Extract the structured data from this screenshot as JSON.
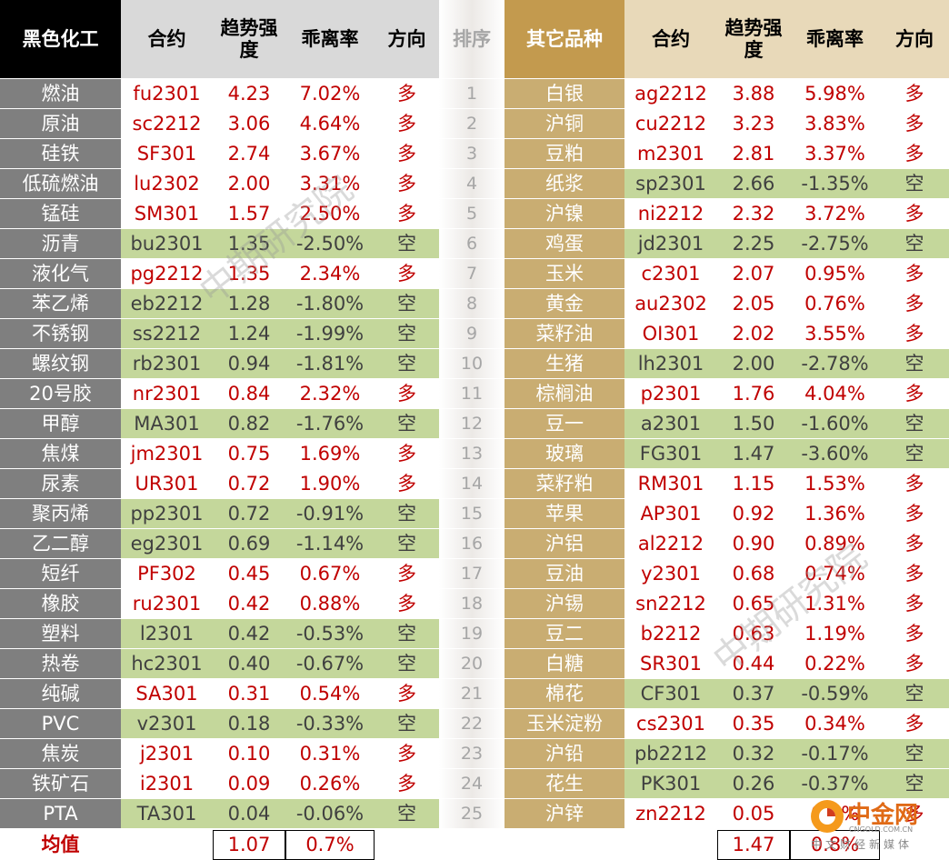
{
  "colors": {
    "long_text": "#c00000",
    "short_bg": "#c4d79b",
    "short_text": "#404040",
    "left_name_bg": "#7f7f7f",
    "right_name_bg": "#c9ad72",
    "left_title_bg": "#000000",
    "right_title_bg": "#c39a4e",
    "header_bg": "#d9d9d9",
    "right_header_bg": "#e8d9b9"
  },
  "left": {
    "title": "黑色化工",
    "headers": {
      "contract": "合约",
      "trend": "趋势强度",
      "deviation": "乖离率",
      "direction": "方向"
    },
    "rows": [
      {
        "name": "燃油",
        "contract": "fu2301",
        "trend": "4.23",
        "deviation": "7.02%",
        "direction": "多"
      },
      {
        "name": "原油",
        "contract": "sc2212",
        "trend": "3.06",
        "deviation": "4.64%",
        "direction": "多"
      },
      {
        "name": "硅铁",
        "contract": "SF301",
        "trend": "2.74",
        "deviation": "3.67%",
        "direction": "多"
      },
      {
        "name": "低硫燃油",
        "contract": "lu2302",
        "trend": "2.00",
        "deviation": "3.31%",
        "direction": "多"
      },
      {
        "name": "锰硅",
        "contract": "SM301",
        "trend": "1.57",
        "deviation": "2.50%",
        "direction": "多"
      },
      {
        "name": "沥青",
        "contract": "bu2301",
        "trend": "1.35",
        "deviation": "-2.50%",
        "direction": "空"
      },
      {
        "name": "液化气",
        "contract": "pg2212",
        "trend": "1.35",
        "deviation": "2.34%",
        "direction": "多"
      },
      {
        "name": "苯乙烯",
        "contract": "eb2212",
        "trend": "1.28",
        "deviation": "-1.80%",
        "direction": "空"
      },
      {
        "name": "不锈钢",
        "contract": "ss2212",
        "trend": "1.24",
        "deviation": "-1.99%",
        "direction": "空"
      },
      {
        "name": "螺纹钢",
        "contract": "rb2301",
        "trend": "0.94",
        "deviation": "-1.81%",
        "direction": "空"
      },
      {
        "name": "20号胶",
        "contract": "nr2301",
        "trend": "0.84",
        "deviation": "2.32%",
        "direction": "多"
      },
      {
        "name": "甲醇",
        "contract": "MA301",
        "trend": "0.82",
        "deviation": "-1.76%",
        "direction": "空"
      },
      {
        "name": "焦煤",
        "contract": "jm2301",
        "trend": "0.75",
        "deviation": "1.69%",
        "direction": "多"
      },
      {
        "name": "尿素",
        "contract": "UR301",
        "trend": "0.72",
        "deviation": "1.90%",
        "direction": "多"
      },
      {
        "name": "聚丙烯",
        "contract": "pp2301",
        "trend": "0.72",
        "deviation": "-0.91%",
        "direction": "空"
      },
      {
        "name": "乙二醇",
        "contract": "eg2301",
        "trend": "0.69",
        "deviation": "-1.14%",
        "direction": "空"
      },
      {
        "name": "短纤",
        "contract": "PF302",
        "trend": "0.45",
        "deviation": "0.67%",
        "direction": "多"
      },
      {
        "name": "橡胶",
        "contract": "ru2301",
        "trend": "0.42",
        "deviation": "0.88%",
        "direction": "多"
      },
      {
        "name": "塑料",
        "contract": "l2301",
        "trend": "0.42",
        "deviation": "-0.53%",
        "direction": "空"
      },
      {
        "name": "热卷",
        "contract": "hc2301",
        "trend": "0.40",
        "deviation": "-0.67%",
        "direction": "空"
      },
      {
        "name": "纯碱",
        "contract": "SA301",
        "trend": "0.31",
        "deviation": "0.54%",
        "direction": "多"
      },
      {
        "name": "PVC",
        "contract": "v2301",
        "trend": "0.18",
        "deviation": "-0.33%",
        "direction": "空"
      },
      {
        "name": "焦炭",
        "contract": "j2301",
        "trend": "0.10",
        "deviation": "0.31%",
        "direction": "多"
      },
      {
        "name": "铁矿石",
        "contract": "i2301",
        "trend": "0.09",
        "deviation": "0.26%",
        "direction": "多"
      },
      {
        "name": "PTA",
        "contract": "TA301",
        "trend": "0.04",
        "deviation": "-0.06%",
        "direction": "空"
      }
    ],
    "average_label": "均值",
    "average_trend": "1.07",
    "average_deviation": "0.7%"
  },
  "rank": {
    "header": "排序",
    "values": [
      "1",
      "2",
      "3",
      "4",
      "5",
      "6",
      "7",
      "8",
      "9",
      "10",
      "11",
      "12",
      "13",
      "14",
      "15",
      "16",
      "17",
      "18",
      "19",
      "20",
      "21",
      "22",
      "23",
      "24",
      "25"
    ]
  },
  "right": {
    "title": "其它品种",
    "headers": {
      "contract": "合约",
      "trend": "趋势强度",
      "deviation": "乖离率",
      "direction": "方向"
    },
    "rows": [
      {
        "name": "白银",
        "contract": "ag2212",
        "trend": "3.88",
        "deviation": "5.98%",
        "direction": "多"
      },
      {
        "name": "沪铜",
        "contract": "cu2212",
        "trend": "3.23",
        "deviation": "3.83%",
        "direction": "多"
      },
      {
        "name": "豆粕",
        "contract": "m2301",
        "trend": "2.81",
        "deviation": "3.37%",
        "direction": "多"
      },
      {
        "name": "纸浆",
        "contract": "sp2301",
        "trend": "2.66",
        "deviation": "-1.35%",
        "direction": "空"
      },
      {
        "name": "沪镍",
        "contract": "ni2212",
        "trend": "2.32",
        "deviation": "3.72%",
        "direction": "多"
      },
      {
        "name": "鸡蛋",
        "contract": "jd2301",
        "trend": "2.25",
        "deviation": "-2.75%",
        "direction": "空"
      },
      {
        "name": "玉米",
        "contract": "c2301",
        "trend": "2.07",
        "deviation": "0.95%",
        "direction": "多"
      },
      {
        "name": "黄金",
        "contract": "au2302",
        "trend": "2.05",
        "deviation": "0.76%",
        "direction": "多"
      },
      {
        "name": "菜籽油",
        "contract": "OI301",
        "trend": "2.02",
        "deviation": "3.55%",
        "direction": "多"
      },
      {
        "name": "生猪",
        "contract": "lh2301",
        "trend": "2.00",
        "deviation": "-2.78%",
        "direction": "空"
      },
      {
        "name": "棕榈油",
        "contract": "p2301",
        "trend": "1.76",
        "deviation": "4.04%",
        "direction": "多"
      },
      {
        "name": "豆一",
        "contract": "a2301",
        "trend": "1.50",
        "deviation": "-1.60%",
        "direction": "空"
      },
      {
        "name": "玻璃",
        "contract": "FG301",
        "trend": "1.47",
        "deviation": "-3.60%",
        "direction": "空"
      },
      {
        "name": "菜籽粕",
        "contract": "RM301",
        "trend": "1.15",
        "deviation": "1.53%",
        "direction": "多"
      },
      {
        "name": "苹果",
        "contract": "AP301",
        "trend": "0.92",
        "deviation": "1.36%",
        "direction": "多"
      },
      {
        "name": "沪铝",
        "contract": "al2212",
        "trend": "0.90",
        "deviation": "0.89%",
        "direction": "多"
      },
      {
        "name": "豆油",
        "contract": "y2301",
        "trend": "0.68",
        "deviation": "0.74%",
        "direction": "多"
      },
      {
        "name": "沪锡",
        "contract": "sn2212",
        "trend": "0.65",
        "deviation": "1.31%",
        "direction": "多"
      },
      {
        "name": "豆二",
        "contract": "b2212",
        "trend": "0.63",
        "deviation": "1.19%",
        "direction": "多"
      },
      {
        "name": "白糖",
        "contract": "SR301",
        "trend": "0.44",
        "deviation": "0.22%",
        "direction": "多"
      },
      {
        "name": "棉花",
        "contract": "CF301",
        "trend": "0.37",
        "deviation": "-0.59%",
        "direction": "空"
      },
      {
        "name": "玉米淀粉",
        "contract": "cs2301",
        "trend": "0.35",
        "deviation": "0.34%",
        "direction": "多"
      },
      {
        "name": "沪铅",
        "contract": "pb2212",
        "trend": "0.32",
        "deviation": "-0.17%",
        "direction": "空"
      },
      {
        "name": "花生",
        "contract": "PK301",
        "trend": "0.26",
        "deviation": "-0.37%",
        "direction": "空"
      },
      {
        "name": "沪锌",
        "contract": "zn2212",
        "trend": "0.05",
        "deviation": "0.2%",
        "direction": "多"
      }
    ],
    "average_trend": "1.47",
    "average_deviation": "0.8%"
  },
  "watermark": "中期研究院",
  "logo": {
    "brand": "中金网",
    "domain": "CNGOLD.COM.CN",
    "tagline": "中文财经新媒体"
  }
}
